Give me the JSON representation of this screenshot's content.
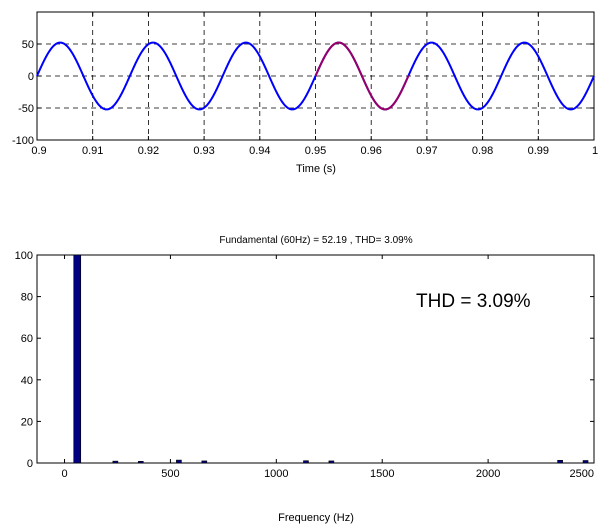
{
  "chart_data": [
    {
      "type": "line",
      "title": "",
      "xlabel": "Time (s)",
      "ylabel": "",
      "xlim": [
        0.9,
        1.0
      ],
      "ylim": [
        -100,
        100
      ],
      "x_ticks": [
        0.9,
        0.91,
        0.92,
        0.93,
        0.94,
        0.95,
        0.96,
        0.97,
        0.98,
        0.99,
        1
      ],
      "x_tick_labels": [
        "0.9",
        "0.91",
        "0.92",
        "0.93",
        "0.94",
        "0.95",
        "0.96",
        "0.97",
        "0.98",
        "0.99",
        "1"
      ],
      "y_ticks": [
        -100,
        -50,
        0,
        50
      ],
      "y_tick_labels": [
        "-100",
        "-50",
        "0",
        "50"
      ],
      "grid": true,
      "grid_style": "dashed",
      "legend": "none",
      "series": [
        {
          "color": "#0000ff",
          "frequency_hz": 60,
          "amplitude": 52.19,
          "phase_deg": 0,
          "x_range": [
            0.9,
            1.0
          ]
        },
        {
          "color": "#990066",
          "frequency_hz": 60,
          "amplitude": 52.19,
          "phase_deg": 0,
          "x_range": [
            0.95,
            0.9667
          ]
        }
      ]
    },
    {
      "type": "bar",
      "title": "Fundamental (60Hz) = 52.19 , THD= 3.09%",
      "xlabel": "Frequency (Hz)",
      "ylabel": "",
      "xlim": [
        -130,
        2500
      ],
      "ylim": [
        0,
        100
      ],
      "x_ticks": [
        0,
        500,
        1000,
        1500,
        2000,
        2500
      ],
      "x_tick_labels": [
        "0",
        "500",
        "1000",
        "1500",
        "2000",
        "2500"
      ],
      "y_ticks": [
        0,
        20,
        40,
        60,
        80,
        100
      ],
      "y_tick_labels": [
        "0",
        "20",
        "40",
        "60",
        "80",
        "100"
      ],
      "grid": false,
      "legend": "none",
      "bar_color": "#000080",
      "annotation": "THD = 3.09%",
      "x": [
        60,
        240,
        360,
        540,
        660,
        1140,
        1260,
        2340,
        2460
      ],
      "values": [
        100,
        0.9,
        0.8,
        1.4,
        1.0,
        1.1,
        1.0,
        1.3,
        1.2
      ]
    }
  ]
}
